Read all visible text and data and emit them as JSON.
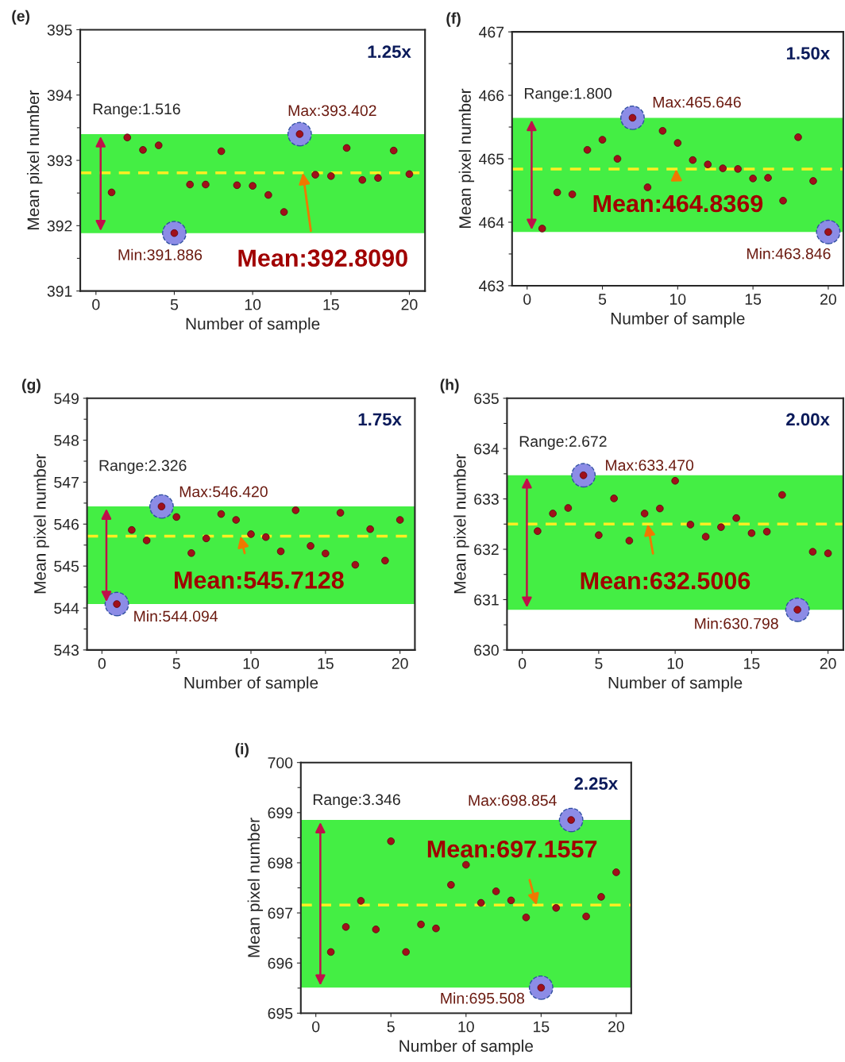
{
  "chart_data": [
    {
      "type": "scatter",
      "title": "(e)",
      "xlabel": "Number of sample",
      "ylabel": "Mean pixel number",
      "xlim": [
        -1,
        21
      ],
      "xticks": [
        0,
        5,
        10,
        15,
        20
      ],
      "ylim": [
        391,
        395
      ],
      "yticks": [
        391,
        {
          "value": 391.5,
          "label": null
        },
        392,
        {
          "value": 392.5,
          "label": null
        },
        393,
        {
          "value": 393.5,
          "label": null
        },
        394,
        {
          "value": 394.5,
          "label": null
        },
        395
      ],
      "grid": false,
      "legend": false,
      "marker": "circle",
      "bands": [
        {
          "axis": "y",
          "from": 391.886,
          "to": 393.402,
          "color": "#44ee44"
        }
      ],
      "ref_lines": [
        {
          "axis": "y",
          "value": 392.809,
          "color": "#ffee22",
          "line_style": "dashed"
        }
      ],
      "annotations": [
        "1.25x",
        "Range:1.516",
        {
          "text": "Max:393.402",
          "x": 13,
          "y": 393.402
        },
        {
          "text": "Min:391.886",
          "x": 5,
          "y": 391.886
        },
        {
          "text": "Mean:392.8090",
          "x": 13.2,
          "y": 392.809
        }
      ],
      "series": [
        {
          "type": "bubble",
          "color": "#8c8ce6",
          "x": [
            5,
            13
          ],
          "values": [
            391.886,
            393.402
          ],
          "sizes": [
            1,
            1
          ]
        },
        {
          "color": "#a0101a",
          "x": [
            1,
            2,
            3,
            4,
            5,
            6,
            7,
            8,
            9,
            10,
            11,
            12,
            13,
            14,
            15,
            16,
            17,
            18,
            19,
            20
          ],
          "values": [
            392.51,
            393.35,
            393.16,
            393.23,
            391.886,
            392.63,
            392.63,
            393.14,
            392.62,
            392.61,
            392.47,
            392.21,
            393.402,
            392.78,
            392.76,
            393.19,
            392.7,
            392.73,
            393.15,
            392.79
          ]
        }
      ]
    },
    {
      "type": "scatter",
      "title": "(f)",
      "xlabel": "Number of sample",
      "ylabel": "Mean pixel number",
      "xlim": [
        -1,
        21
      ],
      "xticks": [
        0,
        5,
        10,
        15,
        20
      ],
      "ylim": [
        463,
        467
      ],
      "yticks": [
        463,
        {
          "value": 463.5,
          "label": null
        },
        464,
        {
          "value": 464.5,
          "label": null
        },
        465,
        {
          "value": 465.5,
          "label": null
        },
        466,
        {
          "value": 466.5,
          "label": null
        },
        467
      ],
      "grid": false,
      "legend": false,
      "marker": "circle",
      "bands": [
        {
          "axis": "y",
          "from": 463.846,
          "to": 465.646,
          "color": "#44ee44"
        }
      ],
      "ref_lines": [
        {
          "axis": "y",
          "value": 464.8369,
          "color": "#ffee22",
          "line_style": "dashed"
        }
      ],
      "annotations": [
        "1.50x",
        "Range:1.800",
        {
          "text": "Max:465.646",
          "x": 7,
          "y": 465.646
        },
        {
          "text": "Min:463.846",
          "x": 20,
          "y": 463.846
        },
        {
          "text": "Mean:464.8369",
          "x": 9.9,
          "y": 464.8369
        }
      ],
      "series": [
        {
          "type": "bubble",
          "color": "#8c8ce6",
          "x": [
            7,
            20
          ],
          "values": [
            465.646,
            463.846
          ],
          "sizes": [
            1,
            1
          ]
        },
        {
          "color": "#a0101a",
          "x": [
            1,
            2,
            3,
            4,
            5,
            6,
            7,
            8,
            9,
            10,
            11,
            12,
            13,
            14,
            15,
            16,
            17,
            18,
            19,
            20
          ],
          "values": [
            463.9,
            464.47,
            464.44,
            465.14,
            465.3,
            465.0,
            465.646,
            464.55,
            465.44,
            465.25,
            464.98,
            464.91,
            464.85,
            464.84,
            464.69,
            464.7,
            464.34,
            465.34,
            464.65,
            463.846
          ]
        }
      ]
    },
    {
      "type": "scatter",
      "title": "(g)",
      "xlabel": "Number of sample",
      "ylabel": "Mean pixel number",
      "xlim": [
        -1,
        21
      ],
      "xticks": [
        0,
        5,
        10,
        15,
        20
      ],
      "ylim": [
        543,
        549
      ],
      "yticks": [
        543,
        {
          "value": 543.5,
          "label": null
        },
        544,
        {
          "value": 544.5,
          "label": null
        },
        545,
        {
          "value": 545.5,
          "label": null
        },
        546,
        {
          "value": 546.5,
          "label": null
        },
        547,
        {
          "value": 547.5,
          "label": null
        },
        548,
        {
          "value": 548.5,
          "label": null
        },
        549
      ],
      "grid": false,
      "legend": false,
      "marker": "circle",
      "bands": [
        {
          "axis": "y",
          "from": 544.094,
          "to": 546.42,
          "color": "#44ee44"
        }
      ],
      "ref_lines": [
        {
          "axis": "y",
          "value": 545.7128,
          "color": "#ffee22",
          "line_style": "dashed"
        }
      ],
      "annotations": [
        "1.75x",
        "Range:2.326",
        {
          "text": "Max:546.420",
          "x": 4,
          "y": 546.42
        },
        {
          "text": "Min:544.094",
          "x": 1,
          "y": 544.094
        },
        {
          "text": "Mean:545.7128",
          "x": 9.3,
          "y": 545.7128
        }
      ],
      "series": [
        {
          "type": "bubble",
          "color": "#8c8ce6",
          "x": [
            4,
            1
          ],
          "values": [
            546.42,
            544.094
          ],
          "sizes": [
            1,
            1
          ]
        },
        {
          "color": "#a0101a",
          "x": [
            1,
            2,
            3,
            4,
            5,
            6,
            7,
            8,
            9,
            10,
            11,
            12,
            13,
            14,
            15,
            16,
            17,
            18,
            19,
            20
          ],
          "values": [
            544.094,
            545.86,
            545.61,
            546.42,
            546.17,
            545.31,
            545.66,
            546.24,
            546.1,
            545.76,
            545.69,
            545.35,
            546.33,
            545.48,
            545.3,
            546.27,
            545.03,
            545.88,
            545.13,
            546.1
          ]
        }
      ]
    },
    {
      "type": "scatter",
      "title": "(h)",
      "xlabel": "Number of sample",
      "ylabel": "Mean pixel number",
      "xlim": [
        -1,
        21
      ],
      "xticks": [
        0,
        5,
        10,
        15,
        20
      ],
      "ylim": [
        630,
        635
      ],
      "yticks": [
        630,
        {
          "value": 630.5,
          "label": null
        },
        631,
        {
          "value": 631.5,
          "label": null
        },
        632,
        {
          "value": 632.5,
          "label": null
        },
        633,
        {
          "value": 633.5,
          "label": null
        },
        634,
        {
          "value": 634.5,
          "label": null
        },
        635
      ],
      "grid": false,
      "legend": false,
      "marker": "circle",
      "bands": [
        {
          "axis": "y",
          "from": 630.798,
          "to": 633.47,
          "color": "#44ee44"
        }
      ],
      "ref_lines": [
        {
          "axis": "y",
          "value": 632.5006,
          "color": "#ffee22",
          "line_style": "dashed"
        }
      ],
      "annotations": [
        "2.00x",
        "Range:2.672",
        {
          "text": "Max:633.470",
          "x": 4,
          "y": 633.47
        },
        {
          "text": "Min:630.798",
          "x": 18,
          "y": 630.798
        },
        {
          "text": "Mean:632.5006",
          "x": 8.2,
          "y": 632.5006
        }
      ],
      "series": [
        {
          "type": "bubble",
          "color": "#8c8ce6",
          "x": [
            4,
            18
          ],
          "values": [
            633.47,
            630.798
          ],
          "sizes": [
            1,
            1
          ]
        },
        {
          "color": "#a0101a",
          "x": [
            1,
            2,
            3,
            4,
            5,
            6,
            7,
            8,
            9,
            10,
            11,
            12,
            13,
            14,
            15,
            16,
            17,
            18,
            19,
            20
          ],
          "values": [
            632.36,
            632.71,
            632.82,
            633.47,
            632.28,
            633.01,
            632.17,
            632.71,
            632.81,
            633.36,
            632.49,
            632.25,
            632.44,
            632.62,
            632.32,
            632.35,
            633.08,
            630.798,
            631.95,
            631.92
          ]
        }
      ]
    },
    {
      "type": "scatter",
      "title": "(i)",
      "xlabel": "Number of sample",
      "ylabel": "Mean pixel number",
      "xlim": [
        -1,
        21
      ],
      "xticks": [
        0,
        5,
        10,
        15,
        20
      ],
      "ylim": [
        695,
        700
      ],
      "yticks": [
        695,
        {
          "value": 695.5,
          "label": null
        },
        696,
        {
          "value": 696.5,
          "label": null
        },
        697,
        {
          "value": 697.5,
          "label": null
        },
        698,
        {
          "value": 698.5,
          "label": null
        },
        699,
        {
          "value": 699.5,
          "label": null
        },
        700
      ],
      "grid": false,
      "legend": false,
      "marker": "circle",
      "bands": [
        {
          "axis": "y",
          "from": 695.508,
          "to": 698.854,
          "color": "#44ee44"
        }
      ],
      "ref_lines": [
        {
          "axis": "y",
          "value": 697.1557,
          "color": "#ffee22",
          "line_style": "dashed"
        }
      ],
      "annotations": [
        "2.25x",
        "Range:3.346",
        {
          "text": "Max:698.854",
          "x": 17,
          "y": 698.854
        },
        {
          "text": "Min:695.508",
          "x": 15,
          "y": 695.508
        },
        {
          "text": "Mean:697.1557",
          "x": 14.7,
          "y": 697.1557
        }
      ],
      "series": [
        {
          "type": "bubble",
          "color": "#8c8ce6",
          "x": [
            17,
            15
          ],
          "values": [
            698.854,
            695.508
          ],
          "sizes": [
            1,
            1
          ]
        },
        {
          "color": "#a0101a",
          "x": [
            1,
            2,
            3,
            4,
            5,
            6,
            7,
            8,
            9,
            10,
            11,
            12,
            13,
            14,
            15,
            16,
            17,
            18,
            19,
            20
          ],
          "values": [
            696.22,
            696.72,
            697.24,
            696.67,
            698.43,
            696.22,
            696.77,
            696.69,
            697.56,
            697.96,
            697.2,
            697.43,
            697.25,
            696.91,
            695.508,
            697.1,
            698.854,
            696.93,
            697.32,
            697.81
          ]
        }
      ]
    }
  ]
}
